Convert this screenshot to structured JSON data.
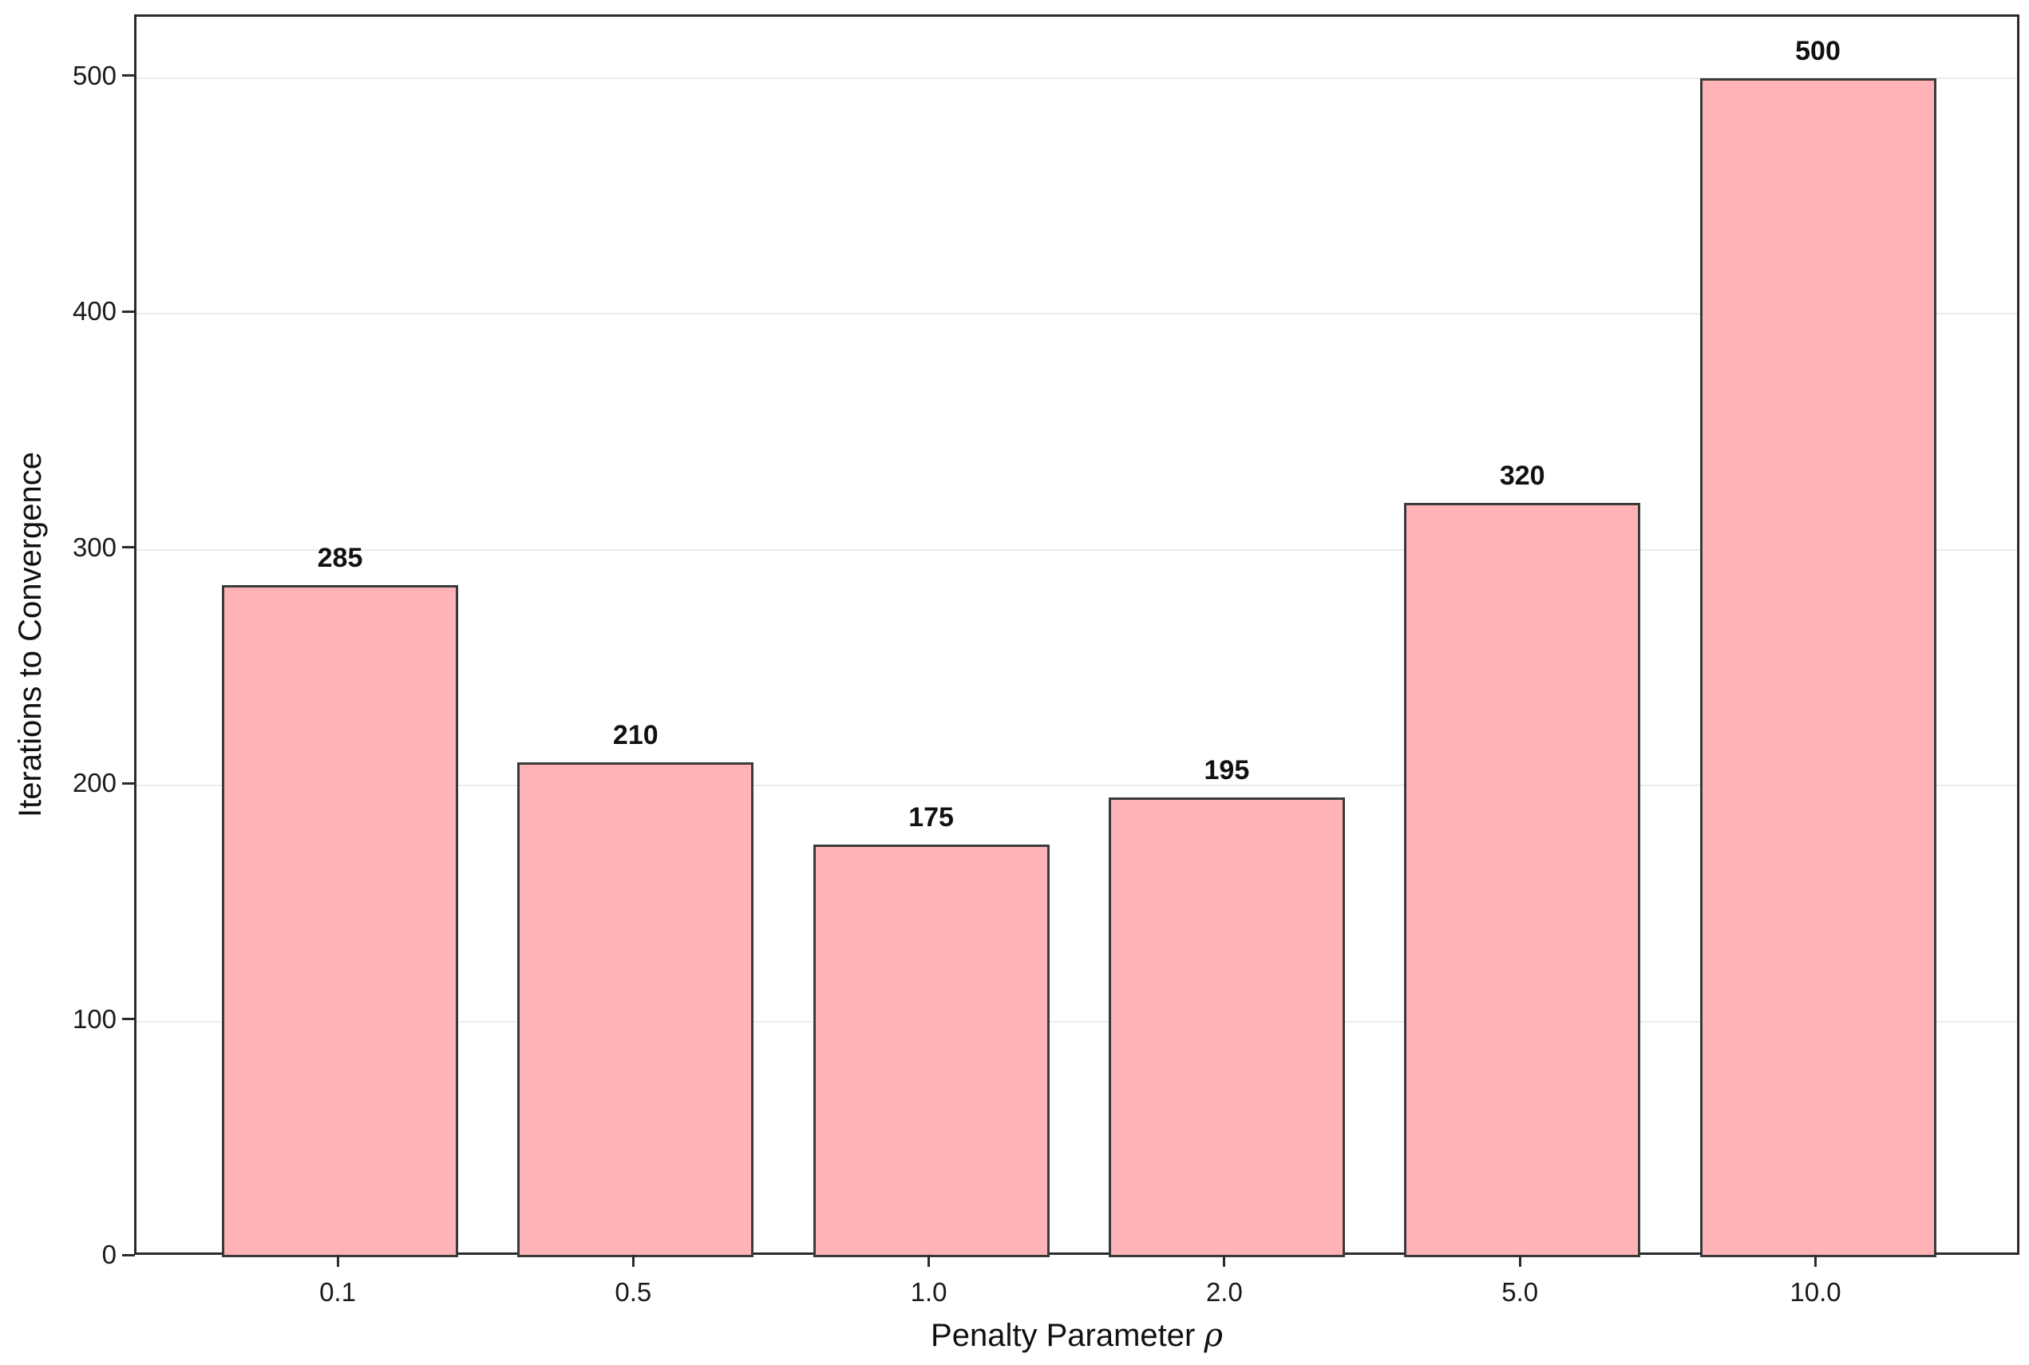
{
  "chart_data": {
    "type": "bar",
    "categories": [
      "0.1",
      "0.5",
      "1.0",
      "2.0",
      "5.0",
      "10.0"
    ],
    "values": [
      285,
      210,
      175,
      195,
      320,
      500
    ],
    "bar_labels": [
      "285",
      "210",
      "175",
      "195",
      "320",
      "500"
    ],
    "title": "",
    "xlabel": "Penalty Parameter ρ",
    "xlabel_prefix": "Penalty Parameter ",
    "xlabel_symbol": "ρ",
    "ylabel": "Iterations to Convergence",
    "yticks": [
      0,
      100,
      200,
      300,
      400,
      500
    ],
    "ylim": [
      0,
      526
    ],
    "grid": "horizontal",
    "legend": "none",
    "colors": {
      "bar_fill": "#ffb3b6",
      "bar_edge": "#3a3a3a",
      "grid": "#ececec",
      "spine": "#2b2b2b",
      "text": "#111111",
      "background": "#ffffff"
    }
  }
}
